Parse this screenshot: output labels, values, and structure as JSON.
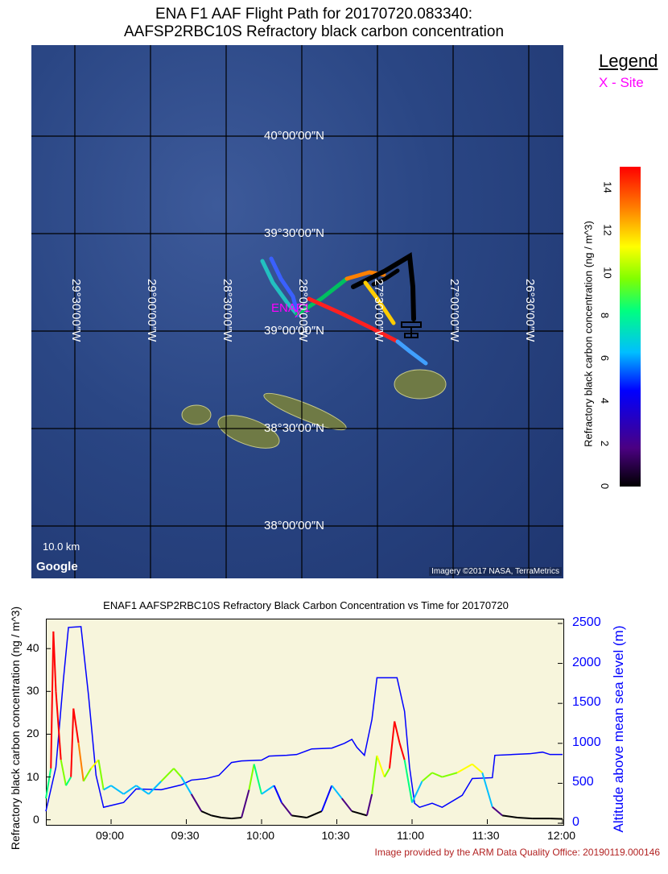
{
  "header": {
    "title_line1": "ENA F1 AAF Flight Path for 20170720.083340:",
    "title_line2": "AAFSP2RBC10S Refractory black carbon concentration"
  },
  "map": {
    "lat_labels": [
      "40°00′00″N",
      "39°30′00″N",
      "39°00′00″N",
      "38°30′00″N",
      "38°00′00″N"
    ],
    "lon_labels": [
      "29°30′00″W",
      "29°00′00″W",
      "28°30′00″W",
      "28°00′00″W",
      "27°30′00″W",
      "27°00′00″W",
      "26°30′00″W"
    ],
    "site_label": "ENAF1",
    "scale_label": "10.0 km",
    "google_logo": "Google",
    "imagery_credit": "Imagery ©2017 NASA, TerraMetrics"
  },
  "legend": {
    "title": "Legend",
    "site": "X - Site",
    "site_color": "#ff00ff"
  },
  "colorbar": {
    "label": "Refractory black carbon concentration  (ng / m^3)",
    "ticks": [
      "0",
      "2",
      "4",
      "6",
      "8",
      "10",
      "12",
      "14"
    ],
    "range": [
      0,
      15
    ]
  },
  "chart_data": {
    "type": "line",
    "title": "ENAF1 AAFSP2RBC10S Refractory Black Carbon Concentration vs Time for 20170720",
    "xlabel": "",
    "x_ticks": [
      "09:00",
      "09:30",
      "10:00",
      "10:30",
      "11:00",
      "11:30",
      "12:00"
    ],
    "ylabel_left": "Refractory black carbon concentration  (ng / m^3)",
    "ylabel_right": "Altitude above mean sea level (m)",
    "y_left_ticks": [
      "0",
      "10",
      "20",
      "30",
      "40"
    ],
    "y_right_ticks": [
      "0",
      "500",
      "1000",
      "1500",
      "2000",
      "2500"
    ],
    "ylim_left": [
      -1,
      47
    ],
    "ylim_right": [
      -10,
      2560
    ],
    "xlim": [
      "08:34",
      "12:00"
    ],
    "series": [
      {
        "name": "Altitude above mean sea level (m)",
        "color": "#0000ff",
        "points": [
          [
            "08:34",
            150
          ],
          [
            "08:38",
            700
          ],
          [
            "08:41",
            1800
          ],
          [
            "08:43",
            2450
          ],
          [
            "08:48",
            2460
          ],
          [
            "08:51",
            1600
          ],
          [
            "08:54",
            600
          ],
          [
            "08:57",
            200
          ],
          [
            "09:05",
            260
          ],
          [
            "09:10",
            430
          ],
          [
            "09:20",
            420
          ],
          [
            "09:28",
            480
          ],
          [
            "09:32",
            540
          ],
          [
            "09:38",
            560
          ],
          [
            "09:43",
            600
          ],
          [
            "09:48",
            760
          ],
          [
            "09:52",
            780
          ],
          [
            "10:00",
            790
          ],
          [
            "10:03",
            840
          ],
          [
            "10:10",
            850
          ],
          [
            "10:14",
            860
          ],
          [
            "10:20",
            930
          ],
          [
            "10:28",
            940
          ],
          [
            "10:33",
            1000
          ],
          [
            "10:36",
            1050
          ],
          [
            "10:38",
            950
          ],
          [
            "10:41",
            850
          ],
          [
            "10:44",
            1300
          ],
          [
            "10:46",
            1820
          ],
          [
            "10:54",
            1820
          ],
          [
            "10:57",
            1400
          ],
          [
            "10:59",
            700
          ],
          [
            "11:01",
            250
          ],
          [
            "11:03",
            200
          ],
          [
            "11:08",
            250
          ],
          [
            "11:12",
            200
          ],
          [
            "11:20",
            350
          ],
          [
            "11:24",
            560
          ],
          [
            "11:32",
            570
          ],
          [
            "11:33",
            850
          ],
          [
            "11:40",
            860
          ],
          [
            "11:47",
            870
          ],
          [
            "11:52",
            890
          ],
          [
            "11:55",
            860
          ],
          [
            "12:00",
            860
          ]
        ]
      },
      {
        "name": "Refractory black carbon concentration",
        "color_scale": "rainbow",
        "points": [
          [
            "08:34",
            5
          ],
          [
            "08:36",
            12
          ],
          [
            "08:37",
            44
          ],
          [
            "08:38",
            30
          ],
          [
            "08:40",
            14
          ],
          [
            "08:42",
            8
          ],
          [
            "08:44",
            10
          ],
          [
            "08:45",
            26
          ],
          [
            "08:47",
            18
          ],
          [
            "08:49",
            9
          ],
          [
            "08:52",
            12
          ],
          [
            "08:55",
            14
          ],
          [
            "08:57",
            7
          ],
          [
            "09:00",
            8
          ],
          [
            "09:05",
            6
          ],
          [
            "09:10",
            8
          ],
          [
            "09:15",
            6
          ],
          [
            "09:20",
            9
          ],
          [
            "09:25",
            12
          ],
          [
            "09:28",
            10
          ],
          [
            "09:32",
            6
          ],
          [
            "09:36",
            2
          ],
          [
            "09:40",
            1
          ],
          [
            "09:44",
            0.5
          ],
          [
            "09:48",
            0.3
          ],
          [
            "09:52",
            0.5
          ],
          [
            "09:55",
            7
          ],
          [
            "09:57",
            13
          ],
          [
            "10:00",
            6
          ],
          [
            "10:05",
            8
          ],
          [
            "10:08",
            4
          ],
          [
            "10:12",
            1
          ],
          [
            "10:18",
            0.5
          ],
          [
            "10:24",
            2
          ],
          [
            "10:28",
            8
          ],
          [
            "10:32",
            5
          ],
          [
            "10:36",
            2
          ],
          [
            "10:42",
            1
          ],
          [
            "10:44",
            6
          ],
          [
            "10:46",
            15
          ],
          [
            "10:49",
            10
          ],
          [
            "10:51",
            12
          ],
          [
            "10:53",
            23
          ],
          [
            "10:55",
            18
          ],
          [
            "10:57",
            14
          ],
          [
            "11:00",
            4
          ],
          [
            "11:04",
            9
          ],
          [
            "11:08",
            11
          ],
          [
            "11:12",
            10
          ],
          [
            "11:18",
            11
          ],
          [
            "11:24",
            13
          ],
          [
            "11:28",
            11
          ],
          [
            "11:32",
            3
          ],
          [
            "11:36",
            1
          ],
          [
            "11:42",
            0.5
          ],
          [
            "11:48",
            0.3
          ],
          [
            "11:55",
            0.3
          ],
          [
            "12:00",
            0.2
          ]
        ]
      }
    ]
  },
  "footer": {
    "credit": "Image provided by the ARM Data Quality Office: 20190119.000146"
  }
}
